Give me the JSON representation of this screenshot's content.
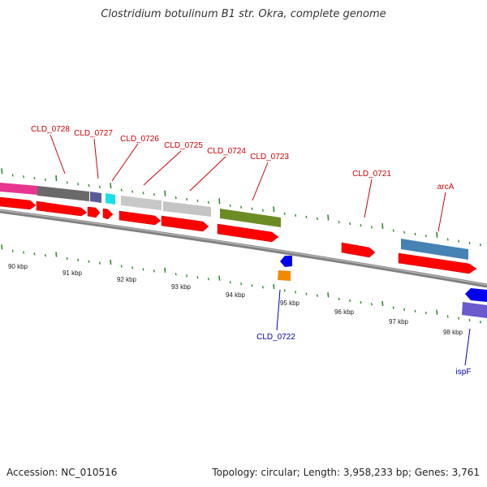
{
  "title": "Clostridium botulinum B1 str. Okra, complete genome",
  "footer": {
    "accession": "Accession: NC_010516",
    "topology": "Topology: circular; Length: 3,958,233 bp; Genes: 3,761"
  },
  "ticks": [
    "90 kbp",
    "91 kbp",
    "92 kbp",
    "93 kbp",
    "94 kbp",
    "95 kbp",
    "96 kbp",
    "97 kbp",
    "98 kbp"
  ],
  "genes_top": [
    "CLD_0728",
    "CLD_0727",
    "CLD_0726",
    "CLD_0725",
    "CLD_0724",
    "CLD_0723",
    "CLD_0721",
    "arcA"
  ],
  "genes_bottom": [
    "CLD_0722",
    "ispF"
  ],
  "colors": {
    "forward_label": "#cc0000",
    "reverse_label": "#0000bb",
    "cds": "#ff0000",
    "backbone": "#888888",
    "tick": "#2e8b2e"
  }
}
